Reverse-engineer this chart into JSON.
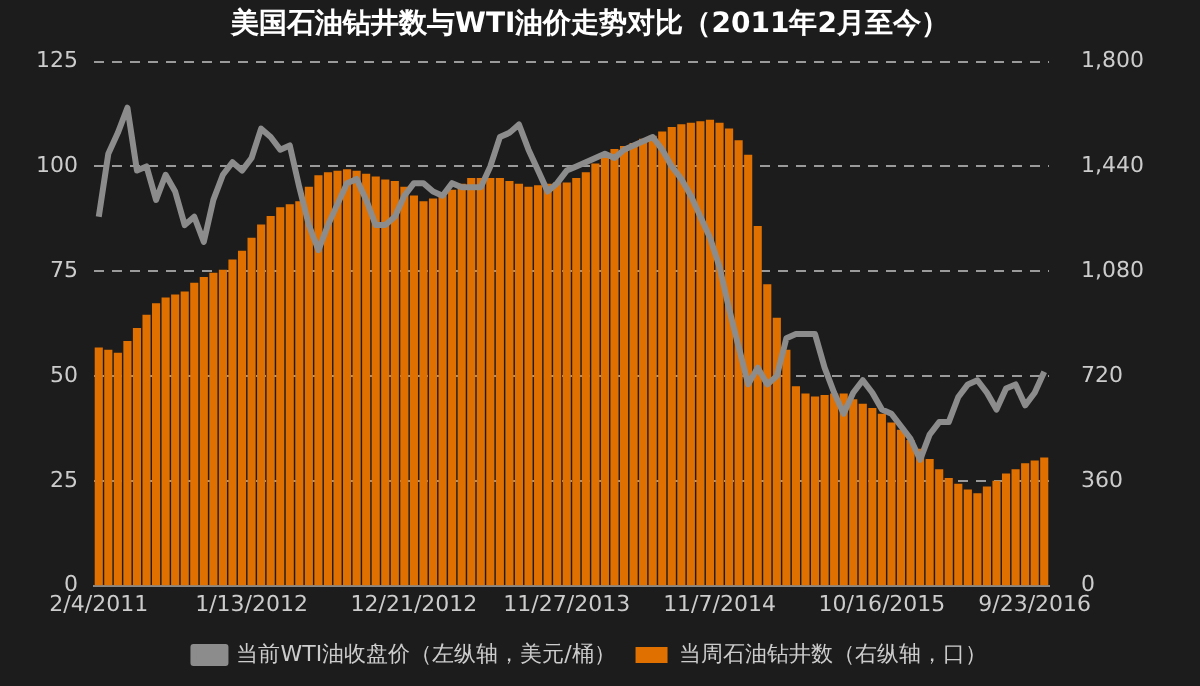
{
  "chart_data": {
    "type": "bar",
    "title": "美国石油钻井数与WTI油价走势对比（2011年2月至今）",
    "categories": [
      "2/4/2011",
      null,
      null,
      null,
      null,
      null,
      null,
      null,
      null,
      null,
      null,
      null,
      null,
      null,
      null,
      null,
      "1/13/2012",
      null,
      null,
      null,
      null,
      null,
      null,
      null,
      null,
      null,
      null,
      null,
      null,
      null,
      null,
      null,
      null,
      "12/21/2012",
      null,
      null,
      null,
      null,
      null,
      null,
      null,
      null,
      null,
      null,
      null,
      null,
      null,
      null,
      null,
      "11/27/2013",
      null,
      null,
      null,
      null,
      null,
      null,
      null,
      null,
      null,
      null,
      null,
      null,
      null,
      null,
      null,
      "11/7/2014",
      null,
      null,
      null,
      null,
      null,
      null,
      null,
      null,
      null,
      null,
      null,
      null,
      null,
      null,
      null,
      null,
      "10/16/2015",
      null,
      null,
      null,
      null,
      null,
      null,
      null,
      null,
      null,
      null,
      null,
      null,
      null,
      null,
      null,
      "9/23/2016",
      null
    ],
    "series": [
      {
        "name": "当前WTI油收盘价（左纵轴，美元/桶）",
        "type": "line",
        "axis": "y",
        "color": "#8c8c8c",
        "marker": "none",
        "values": [
          88,
          103,
          108,
          114,
          99,
          100,
          92,
          98,
          94,
          86,
          88,
          82,
          92,
          98,
          101,
          99,
          102,
          109,
          107,
          104,
          105,
          95,
          86,
          80,
          86,
          91,
          96,
          97,
          92,
          86,
          86,
          88,
          93,
          96,
          96,
          94,
          93,
          96,
          95,
          95,
          95,
          100,
          107,
          108,
          110,
          104,
          99,
          94,
          96,
          99,
          100,
          101,
          102,
          103,
          102,
          104,
          105,
          106,
          107,
          104,
          100,
          97,
          93,
          88,
          83,
          76,
          66,
          57,
          48,
          52,
          48,
          50,
          59,
          60,
          60,
          60,
          52,
          46,
          41,
          46,
          49,
          46,
          42,
          41,
          38,
          35,
          30,
          36,
          39,
          39,
          45,
          48,
          49,
          46,
          42,
          47,
          48,
          43,
          46,
          51
        ]
      },
      {
        "name": "当周石油钻井数（右纵轴，口）",
        "axis": "y2",
        "color": "#e07000",
        "values": [
          818,
          810,
          800,
          840,
          885,
          930,
          970,
          990,
          1000,
          1010,
          1040,
          1060,
          1075,
          1085,
          1120,
          1150,
          1195,
          1240,
          1270,
          1300,
          1310,
          1320,
          1370,
          1410,
          1420,
          1425,
          1430,
          1425,
          1415,
          1405,
          1395,
          1390,
          1370,
          1340,
          1320,
          1330,
          1340,
          1360,
          1380,
          1400,
          1400,
          1400,
          1400,
          1390,
          1380,
          1370,
          1375,
          1380,
          1385,
          1385,
          1400,
          1420,
          1450,
          1480,
          1500,
          1510,
          1520,
          1535,
          1545,
          1560,
          1575,
          1585,
          1590,
          1595,
          1600,
          1590,
          1570,
          1530,
          1480,
          1235,
          1035,
          920,
          810,
          685,
          660,
          650,
          655,
          660,
          660,
          640,
          625,
          610,
          590,
          560,
          535,
          500,
          470,
          435,
          400,
          370,
          350,
          330,
          317,
          340,
          360,
          385,
          400,
          420,
          430,
          440
        ]
      }
    ],
    "ylim": [
      0,
      125
    ],
    "yticks": [
      0,
      25,
      50,
      75,
      100,
      125
    ],
    "y2lim": [
      0,
      1800
    ],
    "y2ticks": [
      0,
      {
        "value": 360,
        "label": "360"
      },
      {
        "value": 720,
        "label": "720"
      },
      {
        "value": 1080,
        "label": "1,080"
      },
      {
        "value": 1440,
        "label": "1,440"
      },
      {
        "value": 1800,
        "label": "1,800"
      }
    ],
    "grid": "y",
    "legend": "bottom"
  }
}
